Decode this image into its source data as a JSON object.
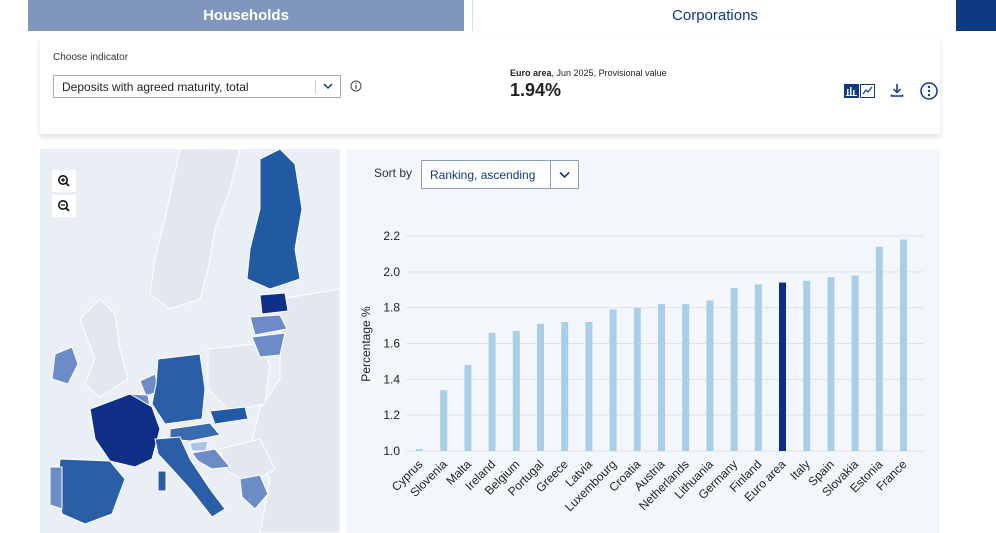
{
  "tabs": {
    "households": "Households",
    "corporations": "Corporations"
  },
  "indicator": {
    "label": "Choose indicator",
    "selected": "Deposits with agreed maturity, total"
  },
  "kpi": {
    "area": "Euro area",
    "caption_rest": ", Jun 2025, Provisional value",
    "value": "1.94%"
  },
  "sort": {
    "label": "Sort by",
    "selected": "Ranking, ascending"
  },
  "colors": {
    "brand": "#0f3a82",
    "bar": "#a9cfe8",
    "highlight": "#0a2e8a",
    "tab_inactive": "#8096bd"
  },
  "icons": [
    "zoom-in-icon",
    "zoom-out-icon",
    "info-icon",
    "bar-chart-icon",
    "line-chart-icon",
    "download-icon",
    "more-icon",
    "chevron-down-icon"
  ],
  "chart_data": {
    "type": "bar",
    "ylabel": "Percentage %",
    "ylim": [
      1.0,
      2.2
    ],
    "yticks": [
      "1.0",
      "1.2",
      "1.4",
      "1.6",
      "1.8",
      "2.0",
      "2.2"
    ],
    "grid": true,
    "highlight": "Euro area",
    "categories": [
      "Cyprus",
      "Slovenia",
      "Malta",
      "Ireland",
      "Belgium",
      "Portugal",
      "Greece",
      "Latvia",
      "Luxembourg",
      "Croatia",
      "Austria",
      "Netherlands",
      "Lithuania",
      "Germany",
      "Finland",
      "Euro area",
      "Italy",
      "Spain",
      "Slovakia",
      "Estonia",
      "France"
    ],
    "values": [
      1.01,
      1.34,
      1.48,
      1.66,
      1.67,
      1.71,
      1.72,
      1.72,
      1.79,
      1.8,
      1.82,
      1.82,
      1.84,
      1.91,
      1.93,
      1.94,
      1.95,
      1.97,
      1.98,
      2.14,
      2.18
    ]
  }
}
